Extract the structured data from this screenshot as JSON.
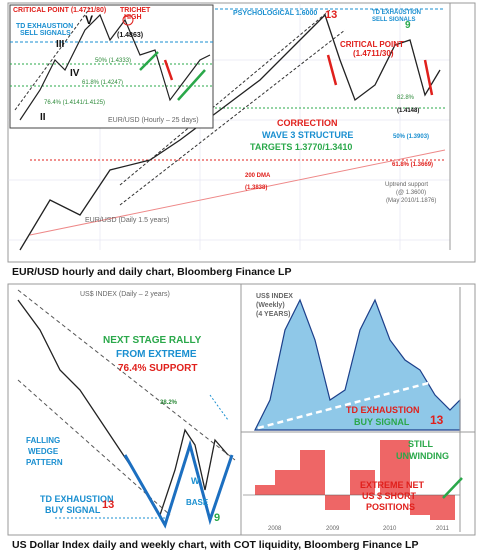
{
  "top_chart": {
    "inset": {
      "texts": [
        "CRITICAL POINT (1.4711/80)",
        "TD EXHAUSTION",
        "SELL SIGNALS",
        "V",
        "III",
        "IV",
        "II",
        "TRICHET",
        "HIGH",
        "(1.4863)",
        "50% (1.4333)",
        "61.8% (1.4247)",
        "76.4% (1.4141/1.4125)",
        "EUR/USD (Hourly – 25 days)"
      ]
    },
    "main": {
      "texts": [
        "PSYCHOLOGICAL 1.6000",
        "13",
        "TD EXHAUSTION",
        "SELL SIGNALS",
        "9",
        "CRITICAL POINT",
        "(1.4711/30)",
        "82.8%",
        "(1.4148)",
        "CORRECTION",
        "WAVE 3 STRUCTURE",
        "TARGETS 1.3770/1.3410",
        "50% (1.3903)",
        "61.8% (1.3669)",
        "200 DMA",
        "(1.3838)",
        "Uptrend support",
        "(@ 1.3600)",
        "(May 2010/1.1876)",
        "EUR/USD (Daily 1.5 years)"
      ]
    },
    "caption": "EUR/USD hourly and daily chart, Bloomberg Finance LP"
  },
  "bottom_chart": {
    "daily": {
      "texts": [
        "US$ INDEX (Daily – 2 years)",
        "NEXT STAGE RALLY",
        "FROM EXTREME",
        "76.4% SUPPORT",
        "38.2%",
        "FALLING",
        "WEDGE",
        "PATTERN",
        "TD EXHAUSTION",
        "BUY SIGNAL",
        "13",
        "W",
        "BASE",
        "9"
      ]
    },
    "weekly": {
      "texts": [
        "US$ INDEX",
        "(Weekly)",
        "(4 YEARS)",
        "TD EXHAUSTION",
        "BUY SIGNAL",
        "13",
        "STILL",
        "UNWINDING",
        "EXTREME NET",
        "US $ SHORT",
        "POSITIONS",
        "2008",
        "2009",
        "2010",
        "2011"
      ]
    },
    "caption": "US Dollar Index daily and weekly chart, with COT liquidity, Bloomberg Finance LP"
  }
}
